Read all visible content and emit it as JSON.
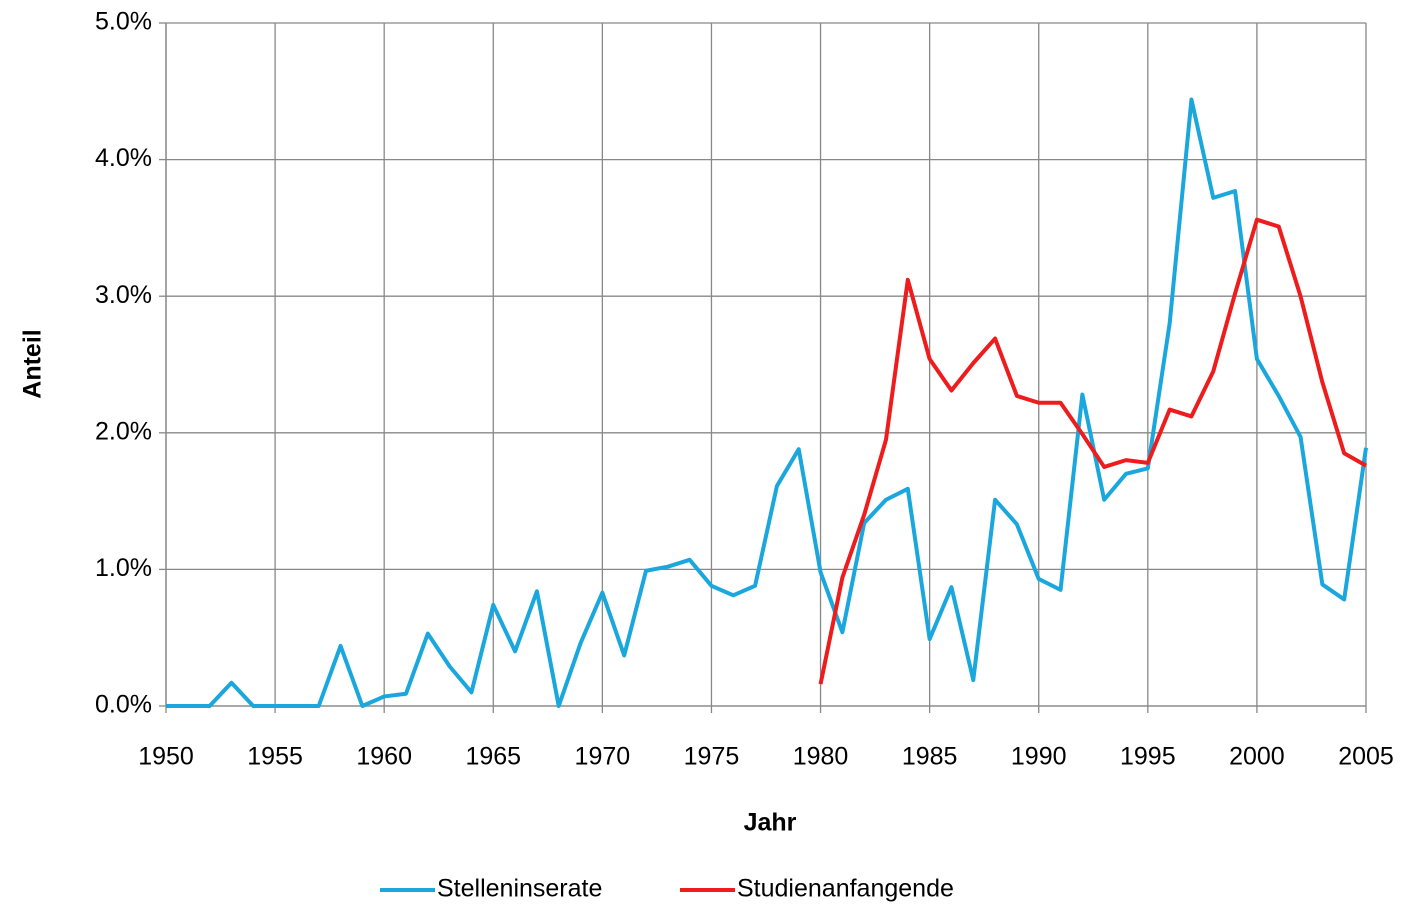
{
  "chart_data": {
    "type": "line",
    "x_label": "Jahr",
    "y_label": "Anteil",
    "x": [
      1950,
      1951,
      1952,
      1953,
      1954,
      1955,
      1956,
      1957,
      1958,
      1959,
      1960,
      1961,
      1962,
      1963,
      1964,
      1965,
      1966,
      1967,
      1968,
      1969,
      1970,
      1971,
      1972,
      1973,
      1974,
      1975,
      1976,
      1977,
      1978,
      1979,
      1980,
      1981,
      1982,
      1983,
      1984,
      1985,
      1986,
      1987,
      1988,
      1989,
      1990,
      1991,
      1992,
      1993,
      1994,
      1995,
      1996,
      1997,
      1998,
      1999,
      2000,
      2001,
      2002,
      2003,
      2004,
      2005
    ],
    "series": [
      {
        "name": "Stelleninserate",
        "color": "#1aa7dd",
        "values": [
          0,
          0,
          0,
          0.17,
          0,
          0,
          0,
          0,
          0.44,
          0,
          0.07,
          0.09,
          0.53,
          0.29,
          0.1,
          0.74,
          0.4,
          0.84,
          0,
          0.46,
          0.83,
          0.37,
          0.99,
          1.02,
          1.07,
          0.88,
          0.81,
          0.88,
          1.61,
          1.88,
          0.98,
          0.54,
          1.34,
          1.51,
          1.59,
          0.49,
          0.87,
          0.19,
          1.51,
          1.33,
          0.93,
          0.85,
          2.28,
          1.51,
          1.7,
          1.74,
          2.8,
          4.44,
          3.72,
          3.77,
          2.54,
          2.27,
          1.97,
          0.89,
          0.78,
          1.89
        ]
      },
      {
        "name": "Studienanfangende",
        "color": "#ee1c1c",
        "values": [
          null,
          null,
          null,
          null,
          null,
          null,
          null,
          null,
          null,
          null,
          null,
          null,
          null,
          null,
          null,
          null,
          null,
          null,
          null,
          null,
          null,
          null,
          null,
          null,
          null,
          null,
          null,
          null,
          null,
          null,
          0.16,
          0.94,
          1.4,
          1.95,
          3.12,
          2.54,
          2.31,
          2.51,
          2.69,
          2.27,
          2.22,
          2.22,
          1.99,
          1.75,
          1.8,
          1.78,
          2.17,
          2.12,
          2.45,
          3.02,
          3.56,
          3.51,
          3.0,
          2.37,
          1.85,
          1.76
        ]
      }
    ],
    "xlim": [
      1950,
      2005
    ],
    "xticks": [
      1950,
      1955,
      1960,
      1965,
      1970,
      1975,
      1980,
      1985,
      1990,
      1995,
      2000,
      2005
    ],
    "ylim": [
      0,
      5
    ],
    "yticks": [
      {
        "value": 0,
        "label": "0.0%"
      },
      {
        "value": 1,
        "label": "1.0%"
      },
      {
        "value": 2,
        "label": "2.0%"
      },
      {
        "value": 3,
        "label": "3.0%"
      },
      {
        "value": 4,
        "label": "4.0%"
      },
      {
        "value": 5,
        "label": "5.0%"
      }
    ],
    "grid": true,
    "legend": "bottom"
  }
}
